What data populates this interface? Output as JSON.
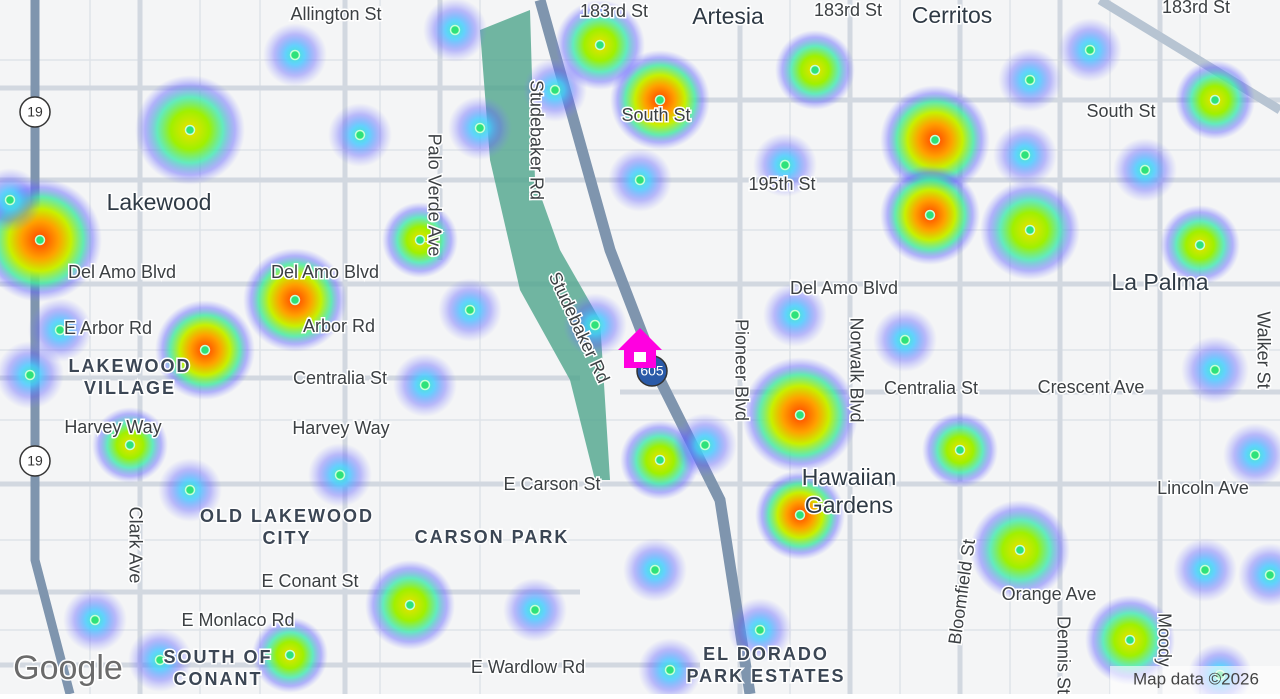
{
  "map": {
    "places": [
      {
        "lines": [
          "Artesia"
        ]
      },
      {
        "lines": [
          "Cerritos"
        ]
      },
      {
        "lines": [
          "Lakewood"
        ]
      },
      {
        "lines": [
          "La Palma"
        ]
      },
      {
        "lines": [
          "Hawaiian",
          "Gardens"
        ]
      }
    ],
    "neighborhoods": [
      {
        "lines": [
          "LAKEWOOD",
          "VILLAGE"
        ]
      },
      {
        "lines": [
          "OLD LAKEWOOD",
          "CITY"
        ]
      },
      {
        "lines": [
          "CARSON PARK"
        ]
      },
      {
        "lines": [
          "SOUTH OF",
          "CONANT"
        ]
      },
      {
        "lines": [
          "EL DORADO",
          "PARK ESTATES"
        ]
      }
    ],
    "streets": [
      "Allington St",
      "183rd St",
      "183rd St",
      "183rd St",
      "South St",
      "South St",
      "195th St",
      "Studebaker Rd",
      "Palo Verde Ave",
      "Del Amo Blvd",
      "Del Amo Blvd",
      "Del Amo Blvd",
      "E Arbor Rd",
      "Arbor Rd",
      "Centralia St",
      "Centralia St",
      "Crescent Ave",
      "Harvey Way",
      "Harvey Way",
      "Studebaker Rd",
      "Pioneer Blvd",
      "Norwalk Blvd",
      "Walker St",
      "E Carson St",
      "Lincoln Ave",
      "Clark Ave",
      "E Conant St",
      "E Monlaco Rd",
      "Orange Ave",
      "E Wardlow Rd",
      "Bloomfield St",
      "Dennis St",
      "Moody"
    ],
    "shields": [
      "19",
      "19",
      "605"
    ],
    "logo": "Google",
    "attribution": "Map data ©2026"
  }
}
